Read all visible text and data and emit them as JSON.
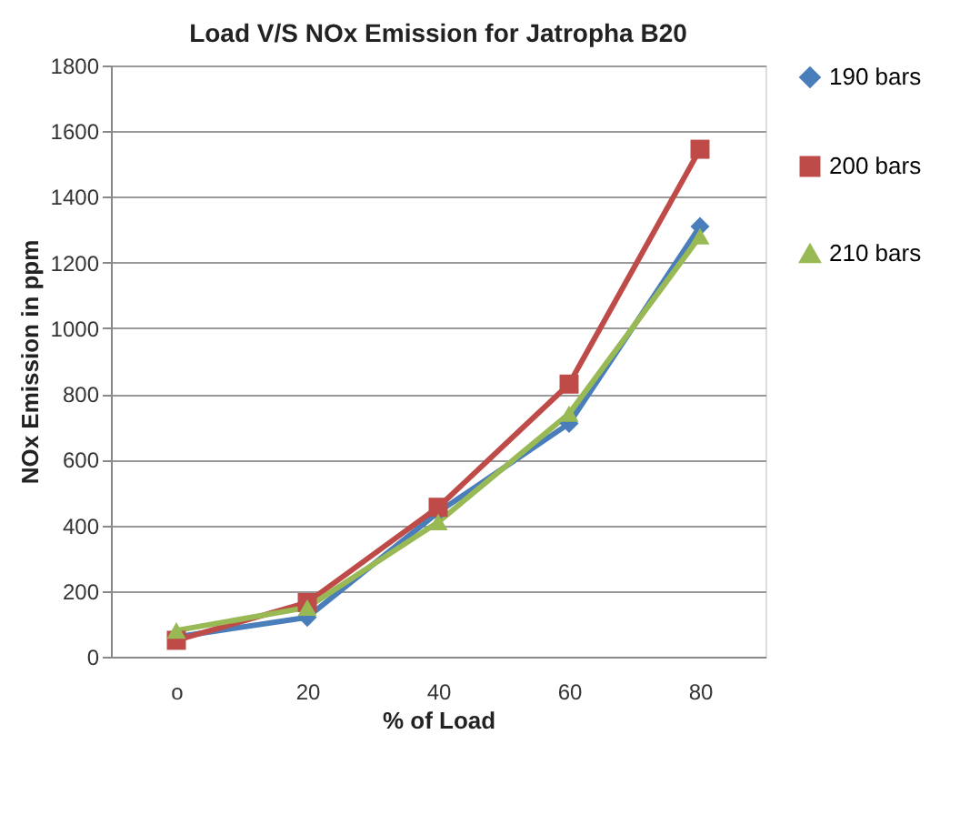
{
  "chart_data": {
    "type": "line",
    "title": "Load V/S NOx Emission  for Jatropha B20",
    "xlabel": "% of Load",
    "ylabel": "NOx Emission  in ppm",
    "categories": [
      "o",
      "20",
      "40",
      "60",
      "80"
    ],
    "series": [
      {
        "name": "190 bars",
        "color": "#4a7ebb",
        "marker": "diamond",
        "values": [
          60,
          120,
          440,
          710,
          1310
        ]
      },
      {
        "name": "200 bars",
        "color": "#be4b48",
        "marker": "square",
        "values": [
          50,
          165,
          455,
          830,
          1545
        ]
      },
      {
        "name": "210 bars",
        "color": "#98b954",
        "marker": "triangle",
        "values": [
          80,
          150,
          410,
          740,
          1280
        ]
      }
    ],
    "ylim": [
      0,
      1800
    ],
    "yticks": [
      0,
      200,
      400,
      600,
      800,
      1000,
      1200,
      1400,
      1600,
      1800
    ],
    "grid": "y",
    "legend": "right",
    "line_style": "solid"
  }
}
